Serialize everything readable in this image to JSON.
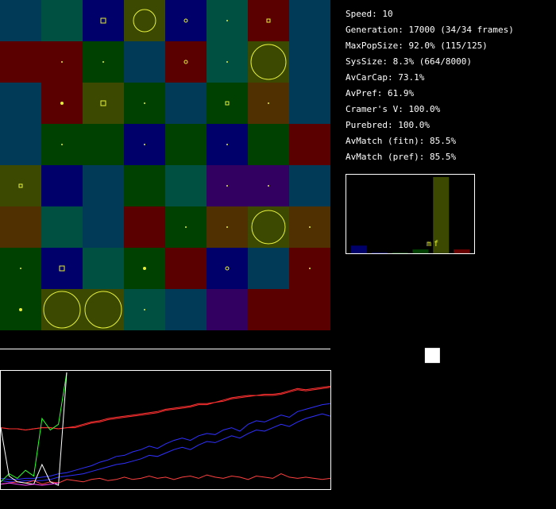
{
  "stats": {
    "speed": "Speed: 10",
    "generation": "Generation: 17000 (34/34 frames)",
    "max_pop_size": "MaxPopSize: 92.0% (115/125)",
    "sys_size": "SysSize: 8.3% (664/8000)",
    "av_car_cap": "AvCarCap: 73.1%",
    "av_pref": "AvPref: 61.9%",
    "cramers_v": "Cramer's V: 100.0%",
    "purebred": "Purebred: 100.0%",
    "av_match_fitn": "AvMatch (fitn): 85.5%",
    "av_match_pref": "AvMatch (pref): 85.5%"
  },
  "histogram": {
    "label_m": "m",
    "label_f": "f",
    "bar_color": "#3b4a00",
    "bars": [
      {
        "color": "#00006a",
        "value": 0.1
      },
      {
        "color": "#00006a",
        "value": 0.0
      },
      {
        "color": "#004000",
        "value": 0.01
      },
      {
        "color": "#004000",
        "value": 0.05
      },
      {
        "color": "#3b4a00",
        "value": 0.99
      },
      {
        "color": "#6b0000",
        "value": 0.05
      }
    ]
  },
  "grid": {
    "rows": 8,
    "cols": 8,
    "cells": [
      [
        "#003a57",
        "#005042",
        "#00006a",
        "#3b4a00",
        "#00006a",
        "#005042",
        "#5a0000",
        "#003a57"
      ],
      [
        "#5a0000",
        "#5a0000",
        "#004000",
        "#003a57",
        "#5a0000",
        "#005042",
        "#3b4a00",
        "#003a57"
      ],
      [
        "#003a57",
        "#5a0000",
        "#3b4a00",
        "#004000",
        "#003a57",
        "#004000",
        "#503000",
        "#003a57"
      ],
      [
        "#003a57",
        "#004000",
        "#004000",
        "#00006a",
        "#004000",
        "#00006a",
        "#004000",
        "#5a0000"
      ],
      [
        "#3b4a00",
        "#00006a",
        "#003a57",
        "#004000",
        "#005042",
        "#320060",
        "#320060",
        "#003a57"
      ],
      [
        "#503000",
        "#005042",
        "#003a57",
        "#5a0000",
        "#004000",
        "#503000",
        "#3b4a00",
        "#503000"
      ],
      [
        "#004000",
        "#00006a",
        "#005042",
        "#004000",
        "#5a0000",
        "#00006a",
        "#003a57",
        "#5a0000"
      ],
      [
        "#004000",
        "#3b4a00",
        "#3b4a00",
        "#005042",
        "#003a57",
        "#320060",
        "#5a0000",
        "#5a0000"
      ]
    ],
    "markers": [
      {
        "r": 0,
        "c": 2,
        "shape": "square",
        "size": 3
      },
      {
        "r": 0,
        "c": 3,
        "shape": "circle",
        "size": 14
      },
      {
        "r": 0,
        "c": 4,
        "shape": "circle",
        "size": 2
      },
      {
        "r": 0,
        "c": 5,
        "shape": "dot",
        "size": 1
      },
      {
        "r": 0,
        "c": 6,
        "shape": "square",
        "size": 2
      },
      {
        "r": 1,
        "c": 1,
        "shape": "dot",
        "size": 1
      },
      {
        "r": 1,
        "c": 2,
        "shape": "dot",
        "size": 1
      },
      {
        "r": 1,
        "c": 4,
        "shape": "circle",
        "size": 2
      },
      {
        "r": 1,
        "c": 5,
        "shape": "dot",
        "size": 1
      },
      {
        "r": 1,
        "c": 6,
        "shape": "circle",
        "size": 22
      },
      {
        "r": 2,
        "c": 1,
        "shape": "dot",
        "size": 2
      },
      {
        "r": 2,
        "c": 2,
        "shape": "square",
        "size": 3
      },
      {
        "r": 2,
        "c": 3,
        "shape": "dot",
        "size": 1
      },
      {
        "r": 2,
        "c": 5,
        "shape": "square",
        "size": 2
      },
      {
        "r": 2,
        "c": 6,
        "shape": "dot",
        "size": 1
      },
      {
        "r": 3,
        "c": 1,
        "shape": "dot",
        "size": 1
      },
      {
        "r": 3,
        "c": 3,
        "shape": "dot",
        "size": 1
      },
      {
        "r": 3,
        "c": 5,
        "shape": "dot",
        "size": 1
      },
      {
        "r": 4,
        "c": 0,
        "shape": "square",
        "size": 2
      },
      {
        "r": 4,
        "c": 5,
        "shape": "dot",
        "size": 1
      },
      {
        "r": 4,
        "c": 6,
        "shape": "dot",
        "size": 1
      },
      {
        "r": 5,
        "c": 4,
        "shape": "dot",
        "size": 1
      },
      {
        "r": 5,
        "c": 5,
        "shape": "dot",
        "size": 1
      },
      {
        "r": 5,
        "c": 6,
        "shape": "circle",
        "size": 21
      },
      {
        "r": 5,
        "c": 7,
        "shape": "dot",
        "size": 1
      },
      {
        "r": 6,
        "c": 0,
        "shape": "dot",
        "size": 1
      },
      {
        "r": 6,
        "c": 1,
        "shape": "square",
        "size": 3
      },
      {
        "r": 6,
        "c": 3,
        "shape": "dot",
        "size": 2
      },
      {
        "r": 6,
        "c": 5,
        "shape": "circle",
        "size": 2
      },
      {
        "r": 6,
        "c": 7,
        "shape": "dot",
        "size": 1
      },
      {
        "r": 7,
        "c": 0,
        "shape": "dot",
        "size": 2
      },
      {
        "r": 7,
        "c": 1,
        "shape": "circle",
        "size": 23
      },
      {
        "r": 7,
        "c": 2,
        "shape": "circle",
        "size": 23
      },
      {
        "r": 7,
        "c": 3,
        "shape": "dot",
        "size": 1
      }
    ],
    "marker_color": "#e6f03c"
  },
  "history": {
    "series": [
      {
        "color": "#ff3030",
        "values": [
          0.52,
          0.51,
          0.51,
          0.5,
          0.51,
          0.52,
          0.52,
          0.51,
          0.52,
          0.53,
          0.55,
          0.57,
          0.58,
          0.6,
          0.61,
          0.62,
          0.63,
          0.64,
          0.65,
          0.66,
          0.68,
          0.69,
          0.7,
          0.71,
          0.73,
          0.73,
          0.74,
          0.76,
          0.78,
          0.79,
          0.8,
          0.8,
          0.81,
          0.81,
          0.82,
          0.84,
          0.86,
          0.85,
          0.86,
          0.87,
          0.88
        ]
      },
      {
        "color": "#ff3030",
        "values": [
          0.52,
          0.51,
          0.51,
          0.5,
          0.51,
          0.52,
          0.52,
          0.51,
          0.52,
          0.52,
          0.54,
          0.56,
          0.57,
          0.59,
          0.6,
          0.61,
          0.62,
          0.63,
          0.64,
          0.65,
          0.67,
          0.68,
          0.69,
          0.7,
          0.72,
          0.72,
          0.74,
          0.75,
          0.77,
          0.78,
          0.79,
          0.8,
          0.8,
          0.8,
          0.81,
          0.83,
          0.85,
          0.84,
          0.85,
          0.86,
          0.87
        ]
      },
      {
        "color": "#3030ff",
        "values": [
          0.08,
          0.07,
          0.07,
          0.08,
          0.08,
          0.09,
          0.1,
          0.12,
          0.13,
          0.15,
          0.17,
          0.19,
          0.22,
          0.24,
          0.27,
          0.28,
          0.31,
          0.33,
          0.36,
          0.34,
          0.38,
          0.41,
          0.43,
          0.41,
          0.45,
          0.47,
          0.46,
          0.5,
          0.52,
          0.49,
          0.55,
          0.58,
          0.57,
          0.6,
          0.63,
          0.61,
          0.66,
          0.68,
          0.7,
          0.72,
          0.73
        ]
      },
      {
        "color": "#3030ff",
        "values": [
          0.06,
          0.05,
          0.05,
          0.06,
          0.06,
          0.06,
          0.07,
          0.09,
          0.1,
          0.11,
          0.12,
          0.14,
          0.16,
          0.18,
          0.2,
          0.21,
          0.23,
          0.25,
          0.28,
          0.27,
          0.3,
          0.33,
          0.35,
          0.33,
          0.37,
          0.4,
          0.39,
          0.42,
          0.45,
          0.43,
          0.47,
          0.5,
          0.49,
          0.52,
          0.55,
          0.53,
          0.57,
          0.6,
          0.62,
          0.64,
          0.62
        ]
      },
      {
        "color": "#ff4040",
        "values": [
          0.03,
          0.04,
          0.05,
          0.04,
          0.06,
          0.03,
          0.05,
          0.04,
          0.07,
          0.06,
          0.05,
          0.07,
          0.08,
          0.06,
          0.07,
          0.09,
          0.07,
          0.08,
          0.1,
          0.08,
          0.09,
          0.07,
          0.09,
          0.1,
          0.08,
          0.11,
          0.09,
          0.08,
          0.1,
          0.09,
          0.07,
          0.1,
          0.09,
          0.08,
          0.12,
          0.09,
          0.08,
          0.09,
          0.08,
          0.07,
          0.08
        ]
      },
      {
        "color": "#30ff30",
        "values": [
          0.05,
          0.12,
          0.08,
          0.15,
          0.1,
          0.6,
          0.5,
          0.55,
          1.0
        ]
      },
      {
        "color": "#ffffff",
        "values": [
          0.52,
          0.1,
          0.05,
          0.04,
          0.03,
          0.2,
          0.05,
          0.02,
          1.0
        ]
      },
      {
        "color": "#ff40ff",
        "values": [
          0.03,
          0.04,
          0.03,
          0.02,
          0.03,
          0.02,
          0.03,
          0.04
        ]
      }
    ]
  },
  "preference": {
    "marker_color": "#ffffff",
    "marker_x": 0.67,
    "marker_y": 0.68
  }
}
